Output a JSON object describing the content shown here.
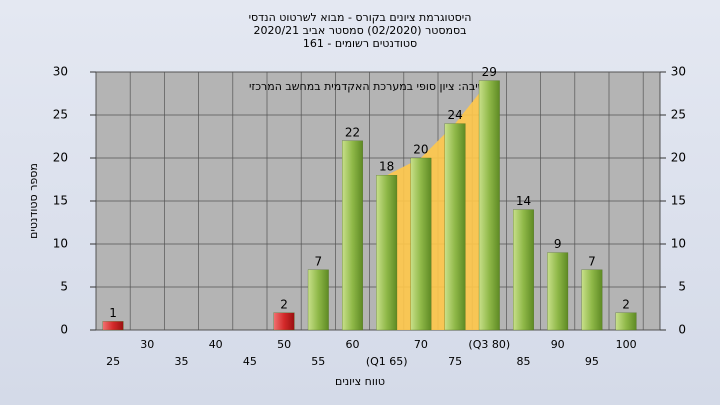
{
  "chart_data": {
    "type": "bar",
    "title_lines": [
      "היסטוגרמת ציונים בקורס - מבוא לשרטוט הנדסי",
      "בסמסטר  (02/2020)  סמסטר אביב 2020/21",
      "סטודנטים רשומים - 161"
    ],
    "annotation": "בחשיבה: ציון סופי במערכת האקדמית במחשב המרכזי",
    "x_label": "טווח ציונים",
    "y_label": "מספר סטודנטים",
    "categories": [
      "25",
      "30",
      "35",
      "40",
      "45",
      "50",
      "55",
      "60",
      "(Q1 65)",
      "70",
      "75",
      "(Q3 80)",
      "85",
      "90",
      "95",
      "100"
    ],
    "values": [
      1,
      0,
      0,
      0,
      0,
      2,
      7,
      22,
      18,
      20,
      24,
      29,
      14,
      9,
      7,
      2
    ],
    "value_labels": [
      "1",
      null,
      null,
      null,
      null,
      "2",
      "7",
      "22",
      "18",
      "20",
      "24",
      "29",
      "14",
      "9",
      "7",
      "2"
    ],
    "colors": [
      "#d42a2a",
      "#8fb848",
      "#8fb848",
      "#8fb848",
      "#8fb848",
      "#d42a2a",
      "#8fb848",
      "#8fb848",
      "#8fb848",
      "#8fb848",
      "#8fb848",
      "#8fb848",
      "#8fb848",
      "#8fb848",
      "#8fb848",
      "#8fb848"
    ],
    "ylim": [
      0,
      30
    ],
    "yticks": [
      0,
      5,
      10,
      15,
      20,
      25,
      30
    ],
    "grid": true
  }
}
